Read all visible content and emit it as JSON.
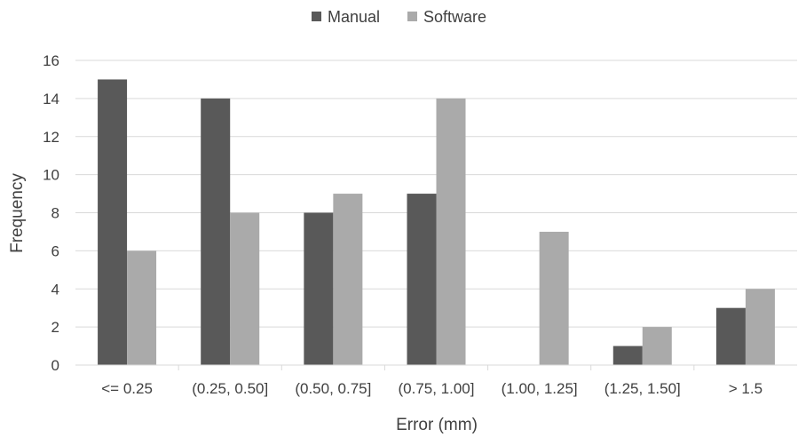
{
  "chart_data": {
    "type": "bar",
    "title": "",
    "xlabel": "Error (mm)",
    "ylabel": "Frequency",
    "ylim": [
      0,
      16
    ],
    "yticks": [
      0,
      2,
      4,
      6,
      8,
      10,
      12,
      14,
      16
    ],
    "grid": true,
    "legend_position": "top",
    "categories": [
      "<= 0.25",
      "(0.25, 0.50]",
      "(0.50, 0.75]",
      "(0.75, 1.00]",
      "(1.00, 1.25]",
      "(1.25, 1.50]",
      "> 1.5"
    ],
    "series": [
      {
        "name": "Manual",
        "color": "#595959",
        "values": [
          15,
          14,
          8,
          9,
          0,
          1,
          3
        ]
      },
      {
        "name": "Software",
        "color": "#aaaaaa",
        "values": [
          6,
          8,
          9,
          14,
          7,
          2,
          4
        ]
      }
    ]
  }
}
